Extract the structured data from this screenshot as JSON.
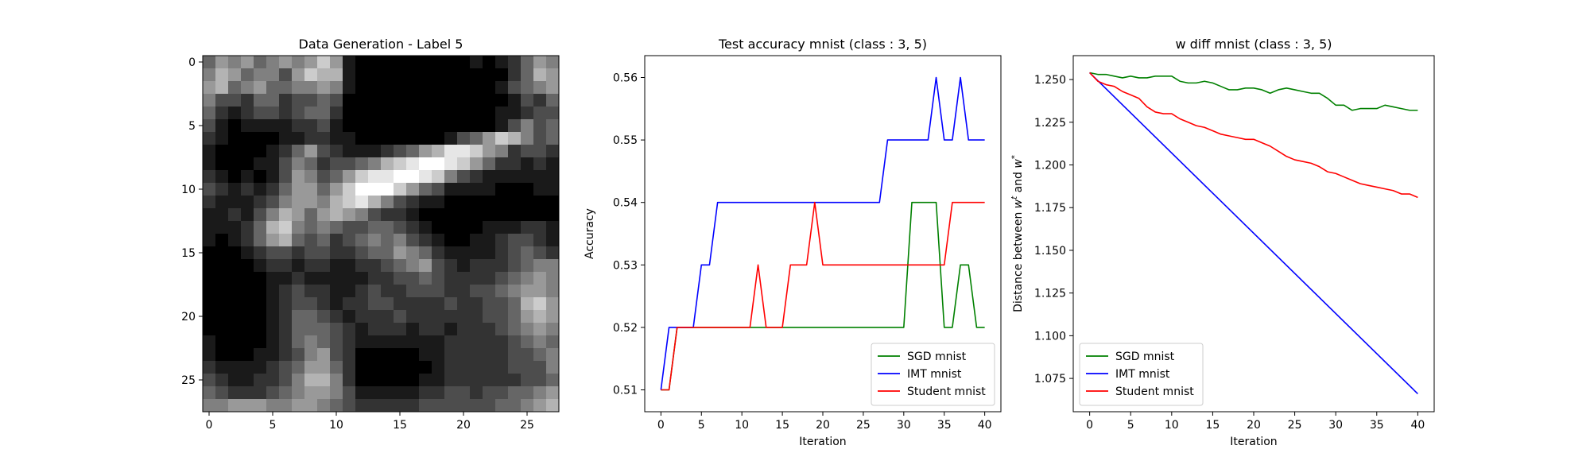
{
  "chart_data": [
    {
      "type": "heatmap",
      "title": "Data Generation - Label 5",
      "xlabel": "",
      "ylabel": "",
      "colormap": "gray",
      "xticks": [
        0,
        5,
        10,
        15,
        20,
        25
      ],
      "yticks": [
        0,
        5,
        10,
        15,
        20,
        25
      ],
      "xlim": [
        -0.5,
        27.5
      ],
      "ylim": [
        27.5,
        -0.5
      ],
      "shape": [
        28,
        28
      ],
      "pixels": [
        "4,6,5,6,4,5,6,5,6,8,6,1,0,0,0,0,0,0,0,0,0,1,0,1,2,4,6,5",
        "5,7,6,4,5,5,3,6,8,7,7,1,0,0,0,0,0,0,0,0,0,0,0,0,2,4,7,6",
        "6,7,4,5,6,4,4,5,5,6,5,1,0,0,0,0,0,0,0,0,0,0,0,1,3,4,5,6",
        "5,3,3,2,4,4,2,3,3,4,3,0,0,0,0,0,0,0,0,0,0,0,0,0,1,3,2,4",
        "4,2,1,2,3,3,2,3,4,4,2,0,0,0,0,0,0,0,0,0,0,0,0,1,1,2,3,3",
        "3,1,0,1,1,1,1,2,2,3,1,0,0,0,0,0,0,0,0,0,0,0,0,1,3,5,3,4",
        "2,1,0,0,0,0,1,1,2,2,1,1,0,0,0,0,0,0,0,1,3,4,6,8,7,5,3,4",
        "1,0,0,0,0,1,2,4,6,3,2,1,1,1,2,3,4,6,7,9,9,8,6,5,2,3,3,2",
        "1,0,0,0,1,1,3,5,4,2,3,3,4,5,7,8,9,10,10,9,8,6,4,2,2,1,2,1",
        "2,1,0,1,0,1,3,6,5,3,4,6,8,9,9,10,10,9,8,5,3,2,1,1,1,1,1,1",
        "3,2,1,2,1,2,4,6,6,4,6,8,10,10,10,8,6,4,3,1,1,1,1,0,0,0,1,1",
        "2,1,1,1,2,3,5,6,6,5,7,8,9,7,5,3,2,1,1,0,0,0,0,0,0,0,0,0",
        "1,1,2,1,3,5,7,6,4,6,7,6,5,3,2,2,1,0,0,0,0,0,0,0,0,0,0,0",
        "1,1,1,2,4,7,8,5,4,5,4,3,3,4,4,3,2,1,0,0,0,0,1,1,1,2,2,1",
        "1,0,1,2,4,6,7,4,3,4,2,3,4,5,4,5,3,2,1,0,0,1,1,2,3,3,2,1",
        "0,0,0,1,2,3,3,2,3,3,2,2,3,4,4,6,5,4,2,1,1,1,1,2,3,4,3,2",
        "0,0,0,0,1,2,2,1,2,2,1,1,2,2,3,4,5,6,3,2,1,2,2,2,3,4,5,5",
        "0,0,0,0,0,1,1,2,1,1,1,1,1,2,2,3,3,4,3,2,2,2,2,3,4,5,6,5",
        "0,0,0,0,0,1,2,3,2,2,1,1,2,3,2,2,3,3,3,2,2,3,3,4,5,6,6,5",
        "0,0,0,0,0,1,2,3,3,2,1,2,2,3,3,2,2,2,2,3,2,2,3,3,4,7,8,6",
        "0,0,0,0,0,1,2,4,4,3,2,1,2,2,2,3,2,2,2,2,2,2,3,3,4,6,7,6",
        "0,0,0,0,0,1,2,4,4,4,3,2,1,2,2,2,1,2,2,1,2,2,2,3,4,5,6,5",
        "1,0,0,0,0,1,2,4,5,4,3,2,1,1,1,1,1,1,1,2,2,2,2,2,3,4,5,4",
        "1,0,0,0,1,1,2,3,5,6,3,2,0,0,0,0,0,1,1,2,2,2,2,2,3,3,4,5",
        "2,1,1,1,1,2,3,4,6,6,4,2,0,0,0,0,0,0,1,2,2,2,2,2,3,3,3,5",
        "3,2,1,1,2,2,3,5,7,7,5,2,0,0,0,0,0,1,1,2,2,2,2,2,2,3,3,4",
        "4,3,2,2,2,3,4,5,6,6,5,3,1,1,1,1,1,2,2,3,3,2,3,3,4,4,5,6",
        "5,5,6,6,6,5,5,6,6,5,4,3,2,2,2,2,2,3,3,3,3,3,3,4,4,5,6,7"
      ]
    },
    {
      "type": "line",
      "title": "Test accuracy mnist (class : 3, 5)",
      "xlabel": "Iteration",
      "ylabel": "Accuracy",
      "xlim": [
        -2,
        42
      ],
      "ylim": [
        0.5065,
        0.5635
      ],
      "xticks": [
        0,
        5,
        10,
        15,
        20,
        25,
        30,
        35,
        40
      ],
      "yticks": [
        0.51,
        0.52,
        0.53,
        0.54,
        0.55,
        0.56
      ],
      "ytick_labels": [
        "0.51",
        "0.52",
        "0.53",
        "0.54",
        "0.55",
        "0.56"
      ],
      "legend_position": "lower-right",
      "series": [
        {
          "name": "SGD mnist",
          "color": "#008000",
          "x": [
            0,
            1,
            2,
            3,
            4,
            5,
            6,
            7,
            8,
            9,
            10,
            11,
            12,
            13,
            14,
            15,
            16,
            17,
            18,
            19,
            20,
            21,
            22,
            23,
            24,
            25,
            26,
            27,
            28,
            29,
            30,
            31,
            32,
            33,
            34,
            35,
            36,
            37,
            38,
            39,
            40
          ],
          "y": [
            0.51,
            0.51,
            0.52,
            0.52,
            0.52,
            0.52,
            0.52,
            0.52,
            0.52,
            0.52,
            0.52,
            0.52,
            0.52,
            0.52,
            0.52,
            0.52,
            0.52,
            0.52,
            0.52,
            0.52,
            0.52,
            0.52,
            0.52,
            0.52,
            0.52,
            0.52,
            0.52,
            0.52,
            0.52,
            0.52,
            0.52,
            0.54,
            0.54,
            0.54,
            0.54,
            0.52,
            0.52,
            0.53,
            0.53,
            0.52,
            0.52
          ]
        },
        {
          "name": "IMT mnist",
          "color": "#0000ff",
          "x": [
            0,
            1,
            2,
            3,
            4,
            5,
            6,
            7,
            8,
            9,
            10,
            11,
            12,
            13,
            14,
            15,
            16,
            17,
            18,
            19,
            20,
            21,
            22,
            23,
            24,
            25,
            26,
            27,
            28,
            29,
            30,
            31,
            32,
            33,
            34,
            35,
            36,
            37,
            38,
            39,
            40
          ],
          "y": [
            0.51,
            0.52,
            0.52,
            0.52,
            0.52,
            0.53,
            0.53,
            0.54,
            0.54,
            0.54,
            0.54,
            0.54,
            0.54,
            0.54,
            0.54,
            0.54,
            0.54,
            0.54,
            0.54,
            0.54,
            0.54,
            0.54,
            0.54,
            0.54,
            0.54,
            0.54,
            0.54,
            0.54,
            0.55,
            0.55,
            0.55,
            0.55,
            0.55,
            0.55,
            0.56,
            0.55,
            0.55,
            0.56,
            0.55,
            0.55,
            0.55
          ]
        },
        {
          "name": "Student mnist",
          "color": "#ff0000",
          "x": [
            0,
            1,
            2,
            3,
            4,
            5,
            6,
            7,
            8,
            9,
            10,
            11,
            12,
            13,
            14,
            15,
            16,
            17,
            18,
            19,
            20,
            21,
            22,
            23,
            24,
            25,
            26,
            27,
            28,
            29,
            30,
            31,
            32,
            33,
            34,
            35,
            36,
            37,
            38,
            39,
            40
          ],
          "y": [
            0.51,
            0.51,
            0.52,
            0.52,
            0.52,
            0.52,
            0.52,
            0.52,
            0.52,
            0.52,
            0.52,
            0.52,
            0.53,
            0.52,
            0.52,
            0.52,
            0.53,
            0.53,
            0.53,
            0.54,
            0.53,
            0.53,
            0.53,
            0.53,
            0.53,
            0.53,
            0.53,
            0.53,
            0.53,
            0.53,
            0.53,
            0.53,
            0.53,
            0.53,
            0.53,
            0.53,
            0.54,
            0.54,
            0.54,
            0.54,
            0.54
          ]
        }
      ]
    },
    {
      "type": "line",
      "title": "w diff mnist (class : 3, 5)",
      "xlabel": "Iteration",
      "ylabel": "Distance between w^t and w^*",
      "ylabel_parts": [
        "Distance between ",
        "w",
        "t",
        " and ",
        "w",
        "*"
      ],
      "xlim": [
        -2,
        42
      ],
      "ylim": [
        1.0555,
        1.264
      ],
      "xticks": [
        0,
        5,
        10,
        15,
        20,
        25,
        30,
        35,
        40
      ],
      "yticks": [
        1.075,
        1.1,
        1.125,
        1.15,
        1.175,
        1.2,
        1.225,
        1.25
      ],
      "ytick_labels": [
        "1.075",
        "1.100",
        "1.125",
        "1.150",
        "1.175",
        "1.200",
        "1.225",
        "1.250"
      ],
      "legend_position": "lower-left",
      "series": [
        {
          "name": "SGD mnist",
          "color": "#008000",
          "x": [
            0,
            1,
            2,
            3,
            4,
            5,
            6,
            7,
            8,
            9,
            10,
            11,
            12,
            13,
            14,
            15,
            16,
            17,
            18,
            19,
            20,
            21,
            22,
            23,
            24,
            25,
            26,
            27,
            28,
            29,
            30,
            31,
            32,
            33,
            34,
            35,
            36,
            37,
            38,
            39,
            40
          ],
          "y": [
            1.254,
            1.253,
            1.253,
            1.252,
            1.251,
            1.252,
            1.251,
            1.251,
            1.252,
            1.252,
            1.252,
            1.249,
            1.248,
            1.248,
            1.249,
            1.248,
            1.246,
            1.244,
            1.244,
            1.245,
            1.245,
            1.244,
            1.242,
            1.244,
            1.245,
            1.244,
            1.243,
            1.242,
            1.242,
            1.239,
            1.235,
            1.235,
            1.232,
            1.233,
            1.233,
            1.233,
            1.235,
            1.234,
            1.233,
            1.232,
            1.232
          ]
        },
        {
          "name": "IMT mnist",
          "color": "#0000ff",
          "x": [
            0,
            40
          ],
          "y": [
            1.254,
            1.066
          ]
        },
        {
          "name": "Student mnist",
          "color": "#ff0000",
          "x": [
            0,
            1,
            2,
            3,
            4,
            5,
            6,
            7,
            8,
            9,
            10,
            11,
            12,
            13,
            14,
            15,
            16,
            17,
            18,
            19,
            20,
            21,
            22,
            23,
            24,
            25,
            26,
            27,
            28,
            29,
            30,
            31,
            32,
            33,
            34,
            35,
            36,
            37,
            38,
            39,
            40
          ],
          "y": [
            1.254,
            1.249,
            1.247,
            1.246,
            1.243,
            1.241,
            1.239,
            1.234,
            1.231,
            1.23,
            1.23,
            1.227,
            1.225,
            1.223,
            1.222,
            1.22,
            1.218,
            1.217,
            1.216,
            1.215,
            1.215,
            1.213,
            1.211,
            1.208,
            1.205,
            1.203,
            1.202,
            1.201,
            1.199,
            1.196,
            1.195,
            1.193,
            1.191,
            1.189,
            1.188,
            1.187,
            1.186,
            1.185,
            1.183,
            1.183,
            1.181
          ]
        }
      ]
    }
  ]
}
